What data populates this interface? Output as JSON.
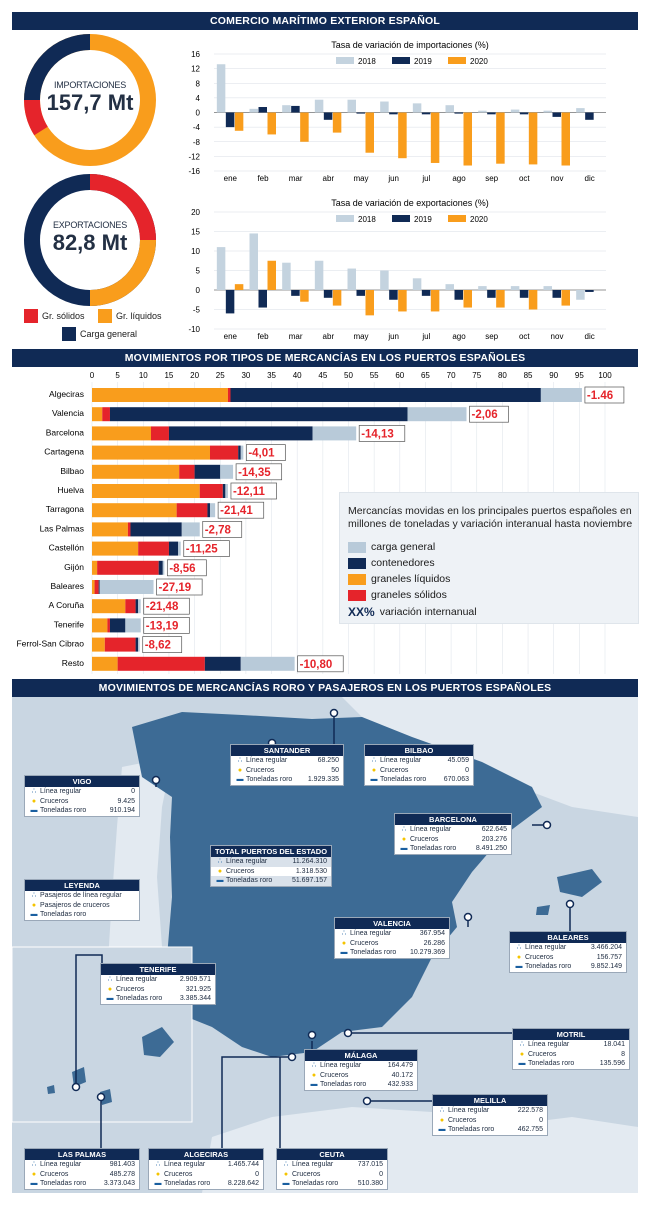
{
  "banners": {
    "b1": "COMERCIO MARÍTIMO EXTERIOR ESPAÑOL",
    "b2": "MOVIMIENTOS POR TIPOS DE MERCANCÍAS EN LOS PUERTOS ESPAÑOLES",
    "b3": "MOVIMIENTOS DE MERCANCÍAS RORO Y PASAJEROS EN LOS PUERTOS ESPAÑOLES"
  },
  "colors": {
    "navy": "#102a55",
    "orange": "#f99d1c",
    "red": "#e5242b",
    "lightblue": "#b8cad9",
    "mapsea": "#c9d6e2",
    "mapland": "#3d6b95"
  },
  "donuts": {
    "imp": {
      "label": "IMPORTACIONES",
      "value": "157,7 Mt"
    },
    "exp": {
      "label": "EXPORTACIONES",
      "value": "82,8 Mt"
    },
    "legend": {
      "solid": "Gr. sólidos",
      "liquid": "Gr. líquidos",
      "general": "Carga general"
    }
  },
  "chart_data": [
    {
      "type": "bar",
      "title": "Tasa de variación de importaciones (%)",
      "categories": [
        "ene",
        "feb",
        "mar",
        "abr",
        "may",
        "jun",
        "jul",
        "ago",
        "sep",
        "oct",
        "nov",
        "dic"
      ],
      "ylim": [
        -16,
        16
      ],
      "yticks": [
        "16",
        "12",
        "8",
        "4",
        "0",
        "-4",
        "-8",
        "-12",
        "-16"
      ],
      "series": [
        {
          "name": "2018",
          "values": [
            13.2,
            1.0,
            2.0,
            3.5,
            3.5,
            3.0,
            2.5,
            2.0,
            0.5,
            0.8,
            0.5,
            1.2
          ]
        },
        {
          "name": "2019",
          "values": [
            -4.0,
            1.5,
            1.8,
            -2.0,
            -0.3,
            -0.5,
            -0.5,
            -0.3,
            -0.5,
            -0.5,
            -1.2,
            -2.0
          ]
        },
        {
          "name": "2020",
          "values": [
            -5.0,
            -6.0,
            -8.0,
            -5.5,
            -11.0,
            -12.5,
            -13.8,
            -14.5,
            -14.0,
            -14.2,
            -14.5,
            0
          ]
        }
      ]
    },
    {
      "type": "bar",
      "title": "Tasa de variación de exportaciones (%)",
      "categories": [
        "ene",
        "feb",
        "mar",
        "abr",
        "may",
        "jun",
        "jul",
        "ago",
        "sep",
        "oct",
        "nov",
        "dic"
      ],
      "ylim": [
        -10,
        20
      ],
      "yticks": [
        "20",
        "15",
        "10",
        "5",
        "0",
        "-5",
        "-10"
      ],
      "series": [
        {
          "name": "2018",
          "values": [
            11.0,
            14.5,
            7.0,
            7.5,
            5.5,
            5.0,
            3.0,
            1.5,
            1.0,
            1.0,
            1.0,
            -2.5
          ]
        },
        {
          "name": "2019",
          "values": [
            -6.0,
            -4.5,
            -1.5,
            -2.0,
            -1.5,
            -2.5,
            -1.5,
            -2.5,
            -2.0,
            -2.0,
            -2.0,
            -0.5
          ]
        },
        {
          "name": "2020",
          "values": [
            1.5,
            7.5,
            -3.0,
            -4.0,
            -6.5,
            -5.5,
            -5.5,
            -4.5,
            -4.5,
            -5.0,
            -4.0,
            0
          ]
        }
      ]
    },
    {
      "type": "bar",
      "orientation": "horizontal-stacked",
      "xlim": [
        0,
        100
      ],
      "xticks": [
        "0",
        "5",
        "10",
        "15",
        "20",
        "25",
        "30",
        "35",
        "40",
        "45",
        "50",
        "55",
        "60",
        "65",
        "70",
        "75",
        "80",
        "85",
        "90",
        "95",
        "100"
      ],
      "categories": [
        "Algeciras",
        "Valencia",
        "Barcelona",
        "Cartagena",
        "Bilbao",
        "Huelva",
        "Tarragona",
        "Las Palmas",
        "Castellón",
        "Gijón",
        "Baleares",
        "A Coruña",
        "Tenerife",
        "Ferrol-San Cibrao",
        "Resto"
      ],
      "series": [
        {
          "name": "graneles líquidos",
          "values": [
            26.5,
            2.0,
            11.5,
            23.0,
            17.0,
            21.0,
            16.5,
            7.0,
            9.0,
            1.0,
            0.5,
            6.5,
            3.0,
            2.5,
            5.0
          ]
        },
        {
          "name": "graneles sólidos",
          "values": [
            0.5,
            1.5,
            3.5,
            5.5,
            3.0,
            4.5,
            6.0,
            0.5,
            6.0,
            12.0,
            0.8,
            2.0,
            0.5,
            6.0,
            17.0
          ]
        },
        {
          "name": "contenedores",
          "values": [
            60.5,
            58.0,
            28.0,
            0.5,
            5.0,
            0.5,
            0.5,
            10.0,
            1.8,
            0.8,
            0.2,
            0.5,
            3.0,
            0.5,
            7.0
          ]
        },
        {
          "name": "carga general",
          "values": [
            8.0,
            11.5,
            8.5,
            0.5,
            2.5,
            0.5,
            1.0,
            3.5,
            0.5,
            0.3,
            10.5,
            0.5,
            3.0,
            0.3,
            10.5
          ]
        }
      ],
      "labels": [
        "-1.46",
        "-2,06",
        "-14,13",
        "-4,01",
        "-14,35",
        "-12,11",
        "-21,41",
        "-2,78",
        "-11,25",
        "-8,56",
        "-27,19",
        "-21,48",
        "-13,19",
        "-8,62",
        "-10,80"
      ],
      "legend": {
        "text": "Mercancías movidas en los principales puertos españoles en millones de toneladas y variación interanual hasta noviembre",
        "items": [
          "carga general",
          "contenedores",
          "graneles líquidos",
          "graneles sólidos"
        ],
        "xx": "XX%",
        "xx_label": "variación internanual"
      }
    }
  ],
  "legend_years": [
    "2018",
    "2019",
    "2020"
  ],
  "map": {
    "boxes": [
      {
        "id": "santander",
        "title": "SANTANDER",
        "rows": [
          [
            "Línea regular",
            "68.250"
          ],
          [
            "Cruceros",
            "50"
          ],
          [
            "Toneladas roro",
            "1.929.335"
          ]
        ]
      },
      {
        "id": "bilbao",
        "title": "BILBAO",
        "rows": [
          [
            "Línea regular",
            "45.059"
          ],
          [
            "Cruceros",
            "0"
          ],
          [
            "Toneladas roro",
            "670.063"
          ]
        ]
      },
      {
        "id": "vigo",
        "title": "VIGO",
        "rows": [
          [
            "Línea regular",
            "0"
          ],
          [
            "Cruceros",
            "9.425"
          ],
          [
            "Toneladas roro",
            "910.194"
          ]
        ]
      },
      {
        "id": "barcelona",
        "title": "BARCELONA",
        "rows": [
          [
            "Línea regular",
            "622.645"
          ],
          [
            "Cruceros",
            "203.276"
          ],
          [
            "Toneladas roro",
            "8.491.250"
          ]
        ]
      },
      {
        "id": "total",
        "title": "TOTAL PUERTOS DEL ESTADO",
        "rows": [
          [
            "Línea regular",
            "11.264.310"
          ],
          [
            "Cruceros",
            "1.318.530"
          ],
          [
            "Toneladas roro",
            "51.697.157"
          ]
        ]
      },
      {
        "id": "leyenda",
        "title": "LEYENDA",
        "rows": [
          [
            "Pasajeros de línea regular",
            ""
          ],
          [
            "Pasajeros de cruceros",
            ""
          ],
          [
            "Toneladas roro",
            ""
          ]
        ]
      },
      {
        "id": "valencia",
        "title": "VALENCIA",
        "rows": [
          [
            "Línea regular",
            "367.954"
          ],
          [
            "Cruceros",
            "26.286"
          ],
          [
            "Toneladas roro",
            "10.279.369"
          ]
        ]
      },
      {
        "id": "baleares",
        "title": "BALEARES",
        "rows": [
          [
            "Línea regular",
            "3.466.204"
          ],
          [
            "Cruceros",
            "156.757"
          ],
          [
            "Toneladas roro",
            "9.852.149"
          ]
        ]
      },
      {
        "id": "tenerife",
        "title": "TENERIFE",
        "rows": [
          [
            "Línea regular",
            "2.909.571"
          ],
          [
            "Cruceros",
            "321.925"
          ],
          [
            "Toneladas roro",
            "3.385.344"
          ]
        ]
      },
      {
        "id": "motril",
        "title": "MOTRIL",
        "rows": [
          [
            "Línea regular",
            "18.041"
          ],
          [
            "Cruceros",
            "8"
          ],
          [
            "Toneladas roro",
            "135.596"
          ]
        ]
      },
      {
        "id": "malaga",
        "title": "MÁLAGA",
        "rows": [
          [
            "Línea regular",
            "164.479"
          ],
          [
            "Cruceros",
            "40.172"
          ],
          [
            "Toneladas roro",
            "432.933"
          ]
        ]
      },
      {
        "id": "melilla",
        "title": "MELILLA",
        "rows": [
          [
            "Línea regular",
            "222.578"
          ],
          [
            "Cruceros",
            "0"
          ],
          [
            "Toneladas roro",
            "462.755"
          ]
        ]
      },
      {
        "id": "laspalmas",
        "title": "LAS PALMAS",
        "rows": [
          [
            "Línea regular",
            "981.403"
          ],
          [
            "Cruceros",
            "485.278"
          ],
          [
            "Toneladas roro",
            "3.373.043"
          ]
        ]
      },
      {
        "id": "algeciras",
        "title": "ALGECIRAS",
        "rows": [
          [
            "Línea regular",
            "1.465.744"
          ],
          [
            "Cruceros",
            "0"
          ],
          [
            "Toneladas roro",
            "8.228.642"
          ]
        ]
      },
      {
        "id": "ceuta",
        "title": "CEUTA",
        "rows": [
          [
            "Línea regular",
            "737.015"
          ],
          [
            "Cruceros",
            "0"
          ],
          [
            "Toneladas roro",
            "510.380"
          ]
        ]
      }
    ]
  }
}
